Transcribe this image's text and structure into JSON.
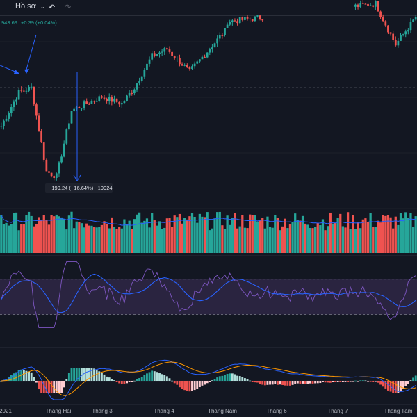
{
  "toolbar": {
    "profile_label": "Hồ sơ",
    "dropdown_icon": "chevron-down-icon",
    "undo_icon": "undo-icon",
    "redo_icon": "redo-icon"
  },
  "price_readout": {
    "value": "943.69",
    "change": "+0.39 (+0.04%)"
  },
  "measure_label": "−199.24 (−16.64%) −19924",
  "colors": {
    "background": "#131722",
    "up": "#26a69a",
    "down": "#ef5350",
    "volume_line": "#2962ff",
    "rsi_line": "#7e57c2",
    "rsi_band": "#2a2440",
    "macd_line": "#2962ff",
    "signal_line": "#ff9800",
    "hist_pos": "#26a69a",
    "hist_neg": "#ef5350",
    "arrow": "#2962ff"
  },
  "xaxis": {
    "labels": [
      "2021",
      "Tháng Hai",
      "Tháng 3",
      "Tháng 4",
      "Tháng Năm",
      "Tháng 6",
      "Tháng 7",
      "Tháng Tám"
    ]
  },
  "chart_data": {
    "type": "candlestick",
    "months": [
      "2021",
      "Tháng Hai",
      "Tháng 3",
      "Tháng 4",
      "Tháng Năm",
      "Tháng 6",
      "Tháng 7",
      "Tháng Tám"
    ],
    "price_segments": [
      {
        "bars": 8,
        "start": 1100,
        "end": 1185
      },
      {
        "bars": 5,
        "start": 1185,
        "end": 1195
      },
      {
        "bars": 6,
        "start": 1195,
        "end": 1010
      },
      {
        "bars": 4,
        "start": 1010,
        "end": 1000
      },
      {
        "bars": 6,
        "start": 1000,
        "end": 1145
      },
      {
        "bars": 12,
        "start": 1145,
        "end": 1175
      },
      {
        "bars": 8,
        "start": 1175,
        "end": 1160
      },
      {
        "bars": 5,
        "start": 1160,
        "end": 1195
      },
      {
        "bars": 7,
        "start": 1195,
        "end": 1265
      },
      {
        "bars": 6,
        "start": 1265,
        "end": 1280
      },
      {
        "bars": 9,
        "start": 1280,
        "end": 1230
      },
      {
        "bars": 14,
        "start": 1230,
        "end": 1320
      },
      {
        "bars": 60,
        "start": 1340,
        "end": 1380
      },
      {
        "bars": 8,
        "start": 1380,
        "end": 1290
      },
      {
        "bars": 8,
        "start": 1290,
        "end": 1350
      }
    ],
    "reference_level": 1195,
    "y_range": [
      990,
      1350
    ],
    "volume": {
      "ma_period": 20
    },
    "rsi": {
      "upper": 70,
      "lower": 30,
      "range": [
        10,
        95
      ]
    },
    "macd": {
      "fast": 12,
      "slow": 26,
      "signal": 9
    }
  }
}
